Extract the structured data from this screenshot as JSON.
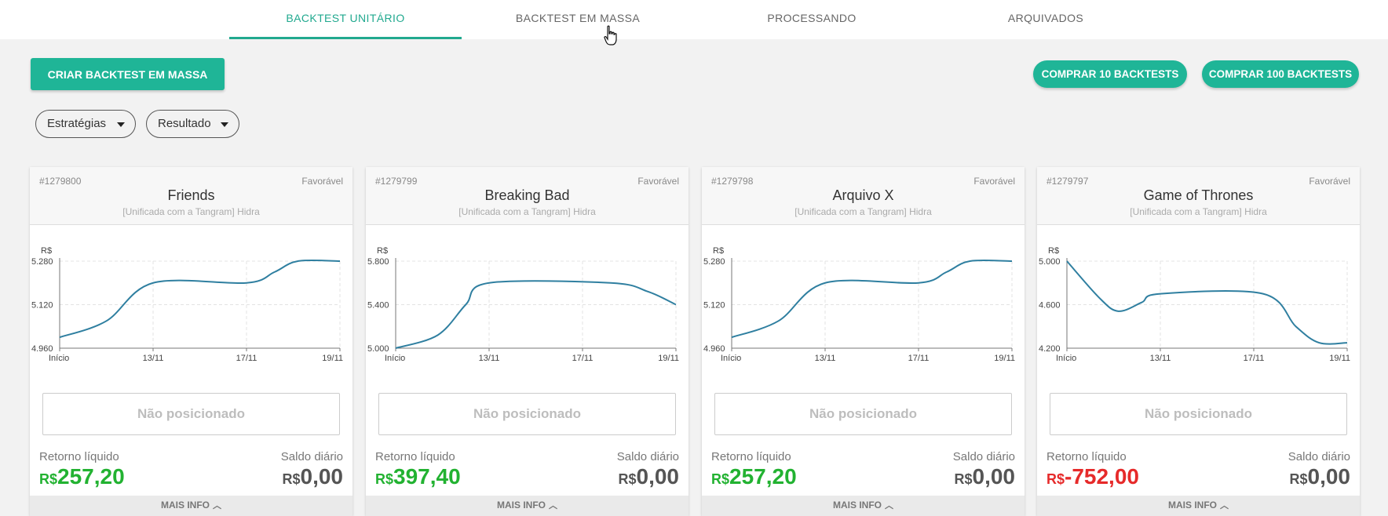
{
  "tabs": [
    {
      "label": "BACKTEST UNITÁRIO",
      "active": true
    },
    {
      "label": "BACKTEST EM MASSA",
      "active": false
    },
    {
      "label": "PROCESSANDO",
      "active": false
    },
    {
      "label": "ARQUIVADOS",
      "active": false
    }
  ],
  "toolbar": {
    "create_label": "CRIAR BACKTEST EM MASSA",
    "buy10_label": "COMPRAR 10 BACKTESTS",
    "buy100_label": "COMPRAR 100 BACKTESTS"
  },
  "filters": {
    "strategies_label": "Estratégias",
    "result_label": "Resultado"
  },
  "colors": {
    "accent": "#1fb597",
    "line": "#2f7fa0",
    "positive": "#22b231",
    "negative": "#e62a2a"
  },
  "cards": [
    {
      "id": "#1279800",
      "favor": "Favorável",
      "title": "Friends",
      "subtitle": "[Unificada com a Tangram] Hidra",
      "status": "Não posicionado",
      "ret_label": "Retorno líquido",
      "ret_currency": "R$",
      "ret_value": "257,20",
      "ret_sign": "positive",
      "sal_label": "Saldo diário",
      "sal_currency": "R$",
      "sal_value": "0,00",
      "more_label": "MAIS INFO"
    },
    {
      "id": "#1279799",
      "favor": "Favorável",
      "title": "Breaking Bad",
      "subtitle": "[Unificada com a Tangram] Hidra",
      "status": "Não posicionado",
      "ret_label": "Retorno líquido",
      "ret_currency": "R$",
      "ret_value": "397,40",
      "ret_sign": "positive",
      "sal_label": "Saldo diário",
      "sal_currency": "R$",
      "sal_value": "0,00",
      "more_label": "MAIS INFO"
    },
    {
      "id": "#1279798",
      "favor": "Favorável",
      "title": "Arquivo X",
      "subtitle": "[Unificada com a Tangram] Hidra",
      "status": "Não posicionado",
      "ret_label": "Retorno líquido",
      "ret_currency": "R$",
      "ret_value": "257,20",
      "ret_sign": "positive",
      "sal_label": "Saldo diário",
      "sal_currency": "R$",
      "sal_value": "0,00",
      "more_label": "MAIS INFO"
    },
    {
      "id": "#1279797",
      "favor": "Favorável",
      "title": "Game of Thrones",
      "subtitle": "[Unificada com a Tangram] Hidra",
      "status": "Não posicionado",
      "ret_label": "Retorno líquido",
      "ret_currency": "R$",
      "ret_value": "-752,00",
      "ret_sign": "negative",
      "sal_label": "Saldo diário",
      "sal_currency": "R$",
      "sal_value": "0,00",
      "more_label": "MAIS INFO"
    }
  ],
  "chart_data": [
    {
      "type": "line",
      "ylabel": "R$",
      "x": [
        "Início",
        "13/11",
        "17/11",
        "19/11"
      ],
      "yticks": [
        "4.960",
        "5.120",
        "5.280"
      ],
      "ylim": [
        4960,
        5280
      ],
      "points": [
        [
          0,
          5000
        ],
        [
          0.5,
          5060
        ],
        [
          1,
          5200
        ],
        [
          2,
          5200
        ],
        [
          2.3,
          5240
        ],
        [
          2.55,
          5280
        ],
        [
          3,
          5280
        ]
      ],
      "grid": true
    },
    {
      "type": "line",
      "ylabel": "R$",
      "x": [
        "Início",
        "13/11",
        "17/11",
        "19/11"
      ],
      "yticks": [
        "5.000",
        "5.400",
        "5.800"
      ],
      "ylim": [
        5000,
        5800
      ],
      "points": [
        [
          0,
          5000
        ],
        [
          0.45,
          5120
        ],
        [
          0.75,
          5400
        ],
        [
          1,
          5600
        ],
        [
          2.3,
          5600
        ],
        [
          2.7,
          5520
        ],
        [
          3,
          5400
        ]
      ],
      "grid": true
    },
    {
      "type": "line",
      "ylabel": "R$",
      "x": [
        "Início",
        "13/11",
        "17/11",
        "19/11"
      ],
      "yticks": [
        "4.960",
        "5.120",
        "5.280"
      ],
      "ylim": [
        4960,
        5280
      ],
      "points": [
        [
          0,
          5000
        ],
        [
          0.5,
          5060
        ],
        [
          1,
          5200
        ],
        [
          2,
          5200
        ],
        [
          2.3,
          5240
        ],
        [
          2.55,
          5280
        ],
        [
          3,
          5280
        ]
      ],
      "grid": true
    },
    {
      "type": "line",
      "ylabel": "R$",
      "x": [
        "Início",
        "13/11",
        "17/11",
        "19/11"
      ],
      "yticks": [
        "4.200",
        "4.600",
        "5.000"
      ],
      "ylim": [
        4200,
        5000
      ],
      "points": [
        [
          0,
          5000
        ],
        [
          0.35,
          4660
        ],
        [
          0.55,
          4540
        ],
        [
          0.8,
          4620
        ],
        [
          1,
          4700
        ],
        [
          2.1,
          4700
        ],
        [
          2.45,
          4400
        ],
        [
          2.7,
          4250
        ],
        [
          3,
          4250
        ]
      ],
      "grid": true
    }
  ]
}
